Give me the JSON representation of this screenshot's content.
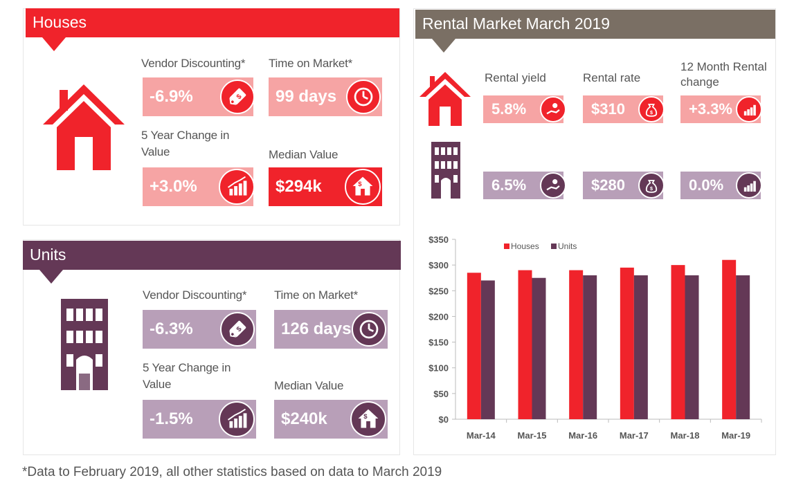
{
  "colors": {
    "red": "#f0232b",
    "pink": "#f6a4a4",
    "plum": "#643856",
    "lilac": "#b89fb8",
    "taupe": "#7a6f64"
  },
  "houses": {
    "title": "Houses",
    "vendor_label": "Vendor Discounting*",
    "vendor_value": "-6.9%",
    "time_label": "Time on Market*",
    "time_value": "99 days",
    "change_label": "5 Year Change in Value",
    "change_value": "+3.0%",
    "median_label": "Median Value",
    "median_value": "$294k"
  },
  "units": {
    "title": "Units",
    "vendor_label": "Vendor Discounting*",
    "vendor_value": "-6.3%",
    "time_label": "Time on Market*",
    "time_value": "126 days",
    "change_label": "5 Year Change in Value",
    "change_value": "-1.5%",
    "median_label": "Median Value",
    "median_value": "$240k"
  },
  "rental": {
    "title": "Rental Market March 2019",
    "yield_label": "Rental yield",
    "rate_label": "Rental rate",
    "change_label": "12 Month Rental change",
    "houses": {
      "yield": "5.8%",
      "rate": "$310",
      "change": "+3.3%"
    },
    "units": {
      "yield": "6.5%",
      "rate": "$280",
      "change": "0.0%"
    }
  },
  "chart_data": {
    "type": "bar",
    "categories": [
      "Mar-14",
      "Mar-15",
      "Mar-16",
      "Mar-17",
      "Mar-18",
      "Mar-19"
    ],
    "series": [
      {
        "name": "Houses",
        "color": "#f0232b",
        "values": [
          285,
          290,
          290,
          295,
          300,
          310
        ]
      },
      {
        "name": "Units",
        "color": "#643856",
        "values": [
          270,
          275,
          280,
          280,
          280,
          280
        ]
      }
    ],
    "ylim": [
      0,
      350
    ],
    "yticks": [
      "$0",
      "$50",
      "$100",
      "$150",
      "$200",
      "$250",
      "$300",
      "$350"
    ],
    "legend": "top-center",
    "grid": false
  },
  "footnote": "*Data to February 2019, all other statistics based on data to March 2019"
}
